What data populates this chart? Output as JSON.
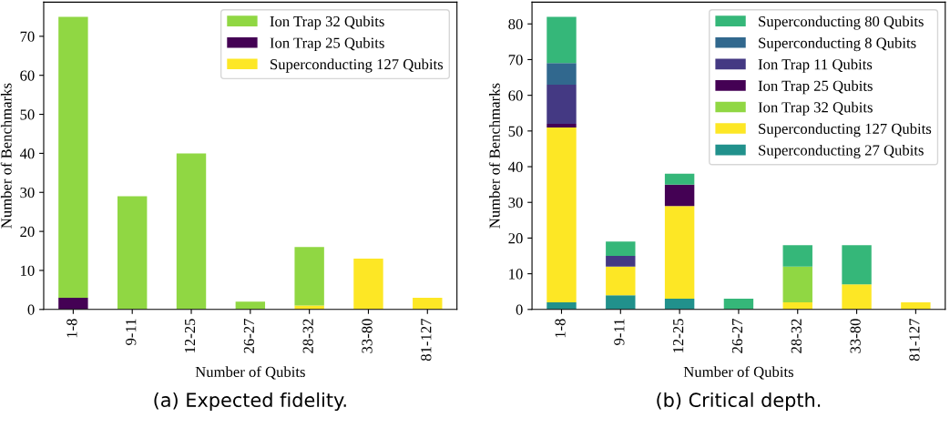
{
  "chart_data": [
    {
      "type": "bar",
      "stacked": true,
      "legend": "top right",
      "grid": false,
      "xlabel": "Number of Qubits",
      "ylabel": "Number of Benchmarks",
      "categories": [
        "1-8",
        "9-11",
        "12-25",
        "26-27",
        "28-32",
        "33-80",
        "81-127"
      ],
      "ylim": [
        0,
        78.75
      ],
      "yticks": [
        0,
        10,
        20,
        30,
        40,
        50,
        60,
        70
      ],
      "annotations": [
        "(a) Expected fidelity."
      ],
      "series": [
        {
          "name": "Superconducting 127 Qubits",
          "color": "#fde725",
          "values": [
            0,
            0,
            0,
            0,
            1,
            13,
            3
          ]
        },
        {
          "name": "Ion Trap 25 Qubits",
          "color": "#440154",
          "values": [
            3,
            0,
            0,
            0,
            0,
            0,
            0
          ]
        },
        {
          "name": "Ion Trap 32 Qubits",
          "color": "#90d743",
          "values": [
            72,
            29,
            40,
            2,
            15,
            0,
            0
          ]
        }
      ]
    },
    {
      "type": "bar",
      "stacked": true,
      "legend": "top right",
      "grid": false,
      "xlabel": "Number of Qubits",
      "ylabel": "Number of Benchmarks",
      "categories": [
        "1-8",
        "9-11",
        "12-25",
        "26-27",
        "28-32",
        "33-80",
        "81-127"
      ],
      "ylim": [
        0,
        86.1
      ],
      "yticks": [
        0,
        10,
        20,
        30,
        40,
        50,
        60,
        70,
        80
      ],
      "annotations": [
        "(b) Critical depth."
      ],
      "series": [
        {
          "name": "Superconducting 27 Qubits",
          "color": "#21918c",
          "values": [
            2,
            4,
            3,
            0,
            0,
            0,
            0
          ]
        },
        {
          "name": "Superconducting 127 Qubits",
          "color": "#fde725",
          "values": [
            49,
            8,
            26,
            0,
            2,
            7,
            2
          ]
        },
        {
          "name": "Ion Trap 32 Qubits",
          "color": "#90d743",
          "values": [
            0,
            0,
            0,
            0,
            10,
            0,
            0
          ]
        },
        {
          "name": "Ion Trap 25 Qubits",
          "color": "#440154",
          "values": [
            1,
            0,
            6,
            0,
            0,
            0,
            0
          ]
        },
        {
          "name": "Ion Trap 11 Qubits",
          "color": "#443983",
          "values": [
            11,
            3,
            0,
            0,
            0,
            0,
            0
          ]
        },
        {
          "name": "Superconducting 8 Qubits",
          "color": "#31688e",
          "values": [
            6,
            0,
            0,
            0,
            0,
            0,
            0
          ]
        },
        {
          "name": "Superconducting 80 Qubits",
          "color": "#35b779",
          "values": [
            13,
            4,
            3,
            3,
            6,
            11,
            0
          ]
        }
      ]
    }
  ]
}
